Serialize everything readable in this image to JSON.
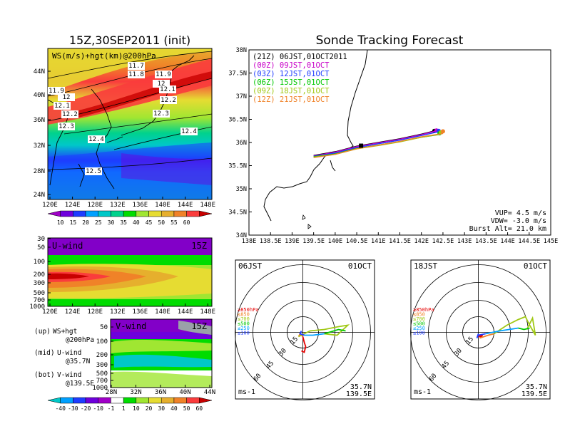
{
  "left": {
    "title": "15Z,30SEP2011 (init)",
    "map_title": "WS(m/s)+hgt(km)@200hPa",
    "lat_ticks": [
      "44N",
      "40N",
      "36N",
      "32N",
      "28N",
      "24N"
    ],
    "lon_ticks": [
      "120E",
      "124E",
      "128E",
      "132E",
      "136E",
      "140E",
      "144E",
      "148E"
    ],
    "contour_labels": [
      "11.7",
      "11.8",
      "11.9",
      "12",
      "12.1",
      "12.2",
      "12.3",
      "12.4",
      "12.5",
      "11.9",
      "12",
      "12.1",
      "12.2",
      "12.3",
      "12.4"
    ],
    "ws_colorbar": {
      "labels": [
        "10",
        "15",
        "20",
        "25",
        "30",
        "35",
        "40",
        "45",
        "50",
        "55",
        "60"
      ],
      "colors": [
        "#a000c8",
        "#6e00dc",
        "#1e3cff",
        "#00a0ff",
        "#00c8c8",
        "#00d28c",
        "#00dc00",
        "#a0e632",
        "#e6dc32",
        "#e6af2d",
        "#f08228",
        "#fa3c3c",
        "#c80000"
      ]
    },
    "uwind": {
      "title": "U-wind",
      "time": "15Z",
      "p_ticks": [
        "30",
        "50",
        "100",
        "200",
        "300",
        "500",
        "700",
        "1000"
      ],
      "lon_ticks": [
        "120E",
        "124E",
        "128E",
        "132E",
        "136E",
        "140E",
        "144E",
        "148E"
      ]
    },
    "vwind": {
      "title": "V-wind",
      "time": "15Z",
      "p_ticks": [
        "50",
        "100",
        "200",
        "300",
        "500",
        "700",
        "1000"
      ],
      "lat_ticks": [
        "28N",
        "32N",
        "36N",
        "40N",
        "44N"
      ]
    },
    "legend": [
      {
        "tag": "(up)",
        "l1": "WS+hgt",
        "l2": "@200hPa"
      },
      {
        "tag": "(mid)",
        "l1": "U-wind",
        "l2": "@35.7N"
      },
      {
        "tag": "(bot)",
        "l1": "V-wind",
        "l2": "@139.5E"
      }
    ],
    "wind_colorbar": {
      "labels": [
        "-40",
        "-30",
        "-20",
        "-10",
        "-1",
        "1",
        "10",
        "20",
        "30",
        "40",
        "50",
        "60"
      ],
      "colors": [
        "#00c8c8",
        "#00a0ff",
        "#1e3cff",
        "#6e00dc",
        "#a000c8",
        "#ffffff",
        "#00dc00",
        "#a0e632",
        "#e6dc32",
        "#e6af2d",
        "#f08228",
        "#fa3c3c",
        "#c80000"
      ]
    }
  },
  "right": {
    "title": "Sonde Tracking Forecast",
    "launches": [
      {
        "label": "(21Z)  06JST,01OCT2011",
        "color": "#000000"
      },
      {
        "label": "(00Z)  09JST,01OCT",
        "color": "#c800c8"
      },
      {
        "label": "(03Z)  12JST,01OCT",
        "color": "#1e3cff"
      },
      {
        "label": "(06Z)  15JST,01OCT",
        "color": "#00c800"
      },
      {
        "label": "(09Z)  18JST,01OCT",
        "color": "#a0c814"
      },
      {
        "label": "(12Z)  21JST,01OCT",
        "color": "#f08228"
      }
    ],
    "lat_ticks": [
      "38N",
      "37.5N",
      "37N",
      "36.5N",
      "36N",
      "35.5N",
      "35N",
      "34.5N",
      "34N"
    ],
    "lon_ticks": [
      "138E",
      "138.5E",
      "139E",
      "139.5E",
      "140E",
      "140.5E",
      "141E",
      "141.5E",
      "142E",
      "142.5E",
      "143E",
      "143.5E",
      "144E",
      "144.5E",
      "145E"
    ],
    "params": [
      "VUP= 4.5 m/s",
      "VDW= -3.0 m/s",
      "Burst Alt= 21.0 km"
    ],
    "hodographs": [
      {
        "time": "06JST",
        "date": "01OCT",
        "lat": "35.7N",
        "lon": "139.5E",
        "unit": "ms-1"
      },
      {
        "time": "18JST",
        "date": "01OCT",
        "lat": "35.7N",
        "lon": "139.5E",
        "unit": "ms-1"
      }
    ],
    "hodo_levels": [
      {
        "label": "≥850hPa",
        "color": "#e60000"
      },
      {
        "label": "≤850",
        "color": "#f08228"
      },
      {
        "label": "≤700",
        "color": "#a0c814"
      },
      {
        "label": "≤500",
        "color": "#00c800"
      },
      {
        "label": "≤250",
        "color": "#00a0ff"
      },
      {
        "label": "≤100",
        "color": "#1e3cff"
      }
    ],
    "ring_labels": [
      "15",
      "30",
      "45",
      "60"
    ]
  },
  "chart_data": [
    {
      "type": "heatmap",
      "title": "15Z,30SEP2011 (init)",
      "subtitle": "WS(m/s)+hgt(km)@200hPa",
      "xlim": [
        120,
        150
      ],
      "ylim": [
        22,
        47
      ],
      "contour_values_km": [
        11.7,
        11.8,
        11.9,
        12,
        12.1,
        12.2,
        12.3,
        12.4,
        12.5
      ]
    },
    {
      "type": "line",
      "title": "Sonde Tracking Forecast",
      "xlim": [
        138,
        145
      ],
      "ylim": [
        34,
        38
      ],
      "series": [
        {
          "name": "(21Z) 06JST,01OCT2011",
          "x": [
            139.5,
            140.0,
            140.5,
            141.0,
            141.5,
            142.0,
            142.3
          ],
          "y": [
            35.72,
            35.8,
            35.92,
            36.0,
            36.08,
            36.18,
            36.25
          ]
        },
        {
          "name": "(00Z) 09JST,01OCT",
          "x": [
            139.5,
            140.0,
            140.5,
            141.0,
            141.5,
            142.0,
            142.35
          ],
          "y": [
            35.72,
            35.8,
            35.92,
            36.0,
            36.08,
            36.18,
            36.26
          ]
        },
        {
          "name": "(03Z) 12JST,01OCT",
          "x": [
            139.5,
            140.0,
            140.5,
            141.0,
            141.5,
            142.0,
            142.4
          ],
          "y": [
            35.72,
            35.79,
            35.91,
            35.99,
            36.07,
            36.17,
            36.25
          ]
        },
        {
          "name": "(06Z) 15JST,01OCT",
          "x": [
            139.5,
            140.0,
            140.5,
            141.0,
            141.5,
            142.0,
            142.42
          ],
          "y": [
            35.72,
            35.78,
            35.9,
            35.97,
            36.05,
            36.14,
            36.2
          ]
        },
        {
          "name": "(09Z) 18JST,01OCT",
          "x": [
            139.5,
            140.0,
            140.5,
            141.0,
            141.5,
            142.0,
            142.45
          ],
          "y": [
            35.72,
            35.78,
            35.9,
            35.97,
            36.05,
            36.15,
            36.22
          ]
        },
        {
          "name": "(12Z) 21JST,01OCT",
          "x": [
            139.5,
            140.0,
            140.5,
            141.0,
            141.5,
            142.0,
            142.5
          ],
          "y": [
            35.72,
            35.79,
            35.91,
            35.99,
            36.07,
            36.17,
            36.24
          ]
        }
      ]
    }
  ]
}
